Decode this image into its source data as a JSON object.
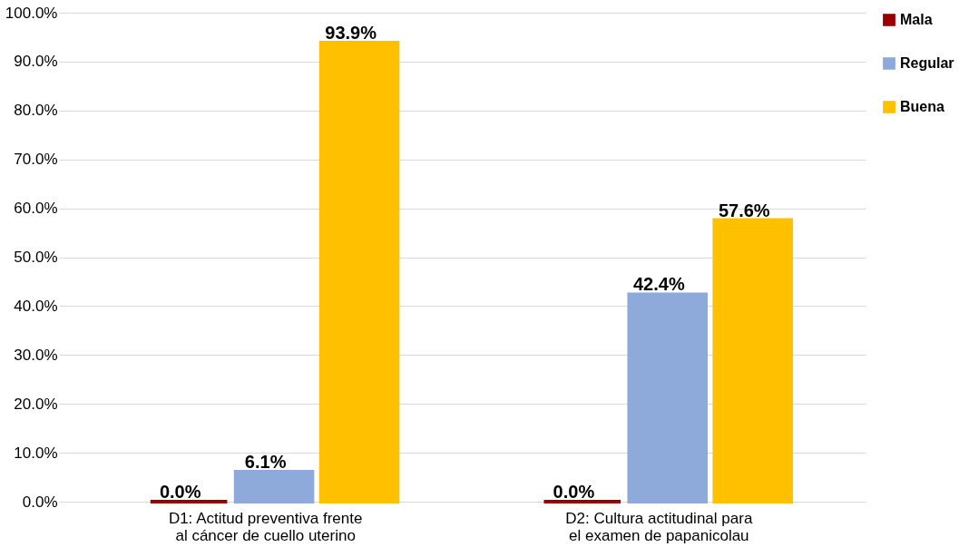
{
  "chart_data": {
    "type": "bar",
    "categories": [
      "D1: Actitud preventiva frente al cáncer de cuello uterino",
      "D2: Cultura actitudinal para el examen de papanicolau"
    ],
    "series": [
      {
        "name": "Mala",
        "color": "#990000",
        "values": [
          0.0,
          0.0
        ],
        "value_labels": [
          "0.0%",
          "0.0%"
        ]
      },
      {
        "name": "Regular",
        "color": "#8eaadb",
        "values": [
          6.1,
          42.4
        ],
        "value_labels": [
          "6.1%",
          "42.4%"
        ]
      },
      {
        "name": "Buena",
        "color": "#ffc000",
        "values": [
          93.9,
          57.6
        ],
        "value_labels": [
          "93.9%",
          "57.6%"
        ]
      }
    ],
    "ylim": [
      0,
      100
    ],
    "yticks": [
      {
        "value": 0,
        "label": "0.0%"
      },
      {
        "value": 10,
        "label": "10.0%"
      },
      {
        "value": 20,
        "label": "20.0%"
      },
      {
        "value": 30,
        "label": "30.0%"
      },
      {
        "value": 40,
        "label": "40.0%"
      },
      {
        "value": 50,
        "label": "50.0%"
      },
      {
        "value": 60,
        "label": "60.0%"
      },
      {
        "value": 70,
        "label": "70.0%"
      },
      {
        "value": 80,
        "label": "80.0%"
      },
      {
        "value": 90,
        "label": "90.0%"
      },
      {
        "value": 100,
        "label": "100.0%"
      }
    ],
    "grid": "y",
    "legend": "right"
  }
}
